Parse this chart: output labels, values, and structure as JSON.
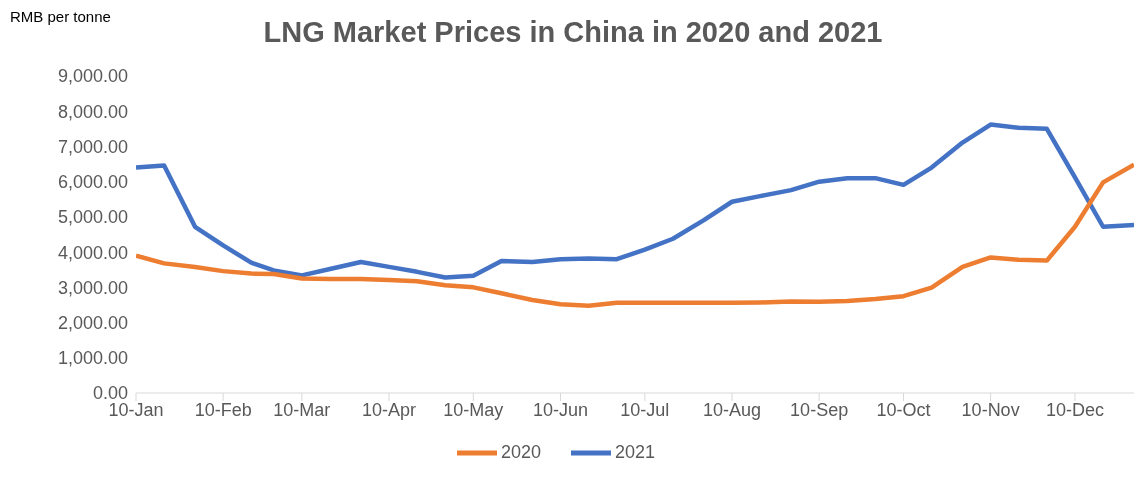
{
  "chart_data": {
    "type": "line",
    "title": "LNG Market Prices in China in 2020 and 2021",
    "ylabel": "RMB per tonne",
    "x": [
      "--01-10",
      "--01-20",
      "--01-31",
      "--02-10",
      "--02-20",
      "--02-28",
      "--03-10",
      "--03-20",
      "--03-31",
      "--04-10",
      "--04-20",
      "--04-30",
      "--05-10",
      "--05-20",
      "--05-31",
      "--06-10",
      "--06-20",
      "--06-30",
      "--07-10",
      "--07-20",
      "--07-31",
      "--08-10",
      "--08-20",
      "--08-31",
      "--09-10",
      "--09-20",
      "--09-30",
      "--10-10",
      "--10-20",
      "--10-31",
      "--11-10",
      "--11-20",
      "--11-30",
      "--12-10",
      "--12-20",
      "--12-31"
    ],
    "series": [
      {
        "name": "2021",
        "color": "#4472c4",
        "values": [
          6400,
          6460,
          4720,
          4190,
          3700,
          3480,
          3340,
          3520,
          3720,
          3580,
          3440,
          3280,
          3330,
          3750,
          3720,
          3800,
          3820,
          3800,
          4070,
          4380,
          4910,
          5430,
          5590,
          5760,
          6000,
          6100,
          6100,
          5910,
          6400,
          7110,
          7620,
          7530,
          7500,
          6120,
          4720,
          4770
        ]
      },
      {
        "name": "2020",
        "color": "#ed7d31",
        "values": [
          3900,
          3680,
          3580,
          3460,
          3390,
          3380,
          3250,
          3240,
          3240,
          3210,
          3170,
          3060,
          3000,
          2830,
          2640,
          2520,
          2480,
          2560,
          2560,
          2560,
          2560,
          2560,
          2570,
          2600,
          2590,
          2610,
          2670,
          2750,
          2990,
          3580,
          3850,
          3780,
          3760,
          4720,
          5980,
          6480
        ]
      }
    ],
    "xlim": [
      "--01-10",
      "--12-31"
    ],
    "xticks": [
      {
        "value": "--01-10",
        "label": "10-Jan"
      },
      {
        "value": "--02-10",
        "label": "10-Feb"
      },
      {
        "value": "--03-10",
        "label": "10-Mar"
      },
      {
        "value": "--04-10",
        "label": "10-Apr"
      },
      {
        "value": "--05-10",
        "label": "10-May"
      },
      {
        "value": "--06-10",
        "label": "10-Jun"
      },
      {
        "value": "--07-10",
        "label": "10-Jul"
      },
      {
        "value": "--08-10",
        "label": "10-Aug"
      },
      {
        "value": "--09-10",
        "label": "10-Sep"
      },
      {
        "value": "--10-10",
        "label": "10-Oct"
      },
      {
        "value": "--11-10",
        "label": "10-Nov"
      },
      {
        "value": "--12-10",
        "label": "10-Dec"
      }
    ],
    "ylim": [
      0,
      9000
    ],
    "yticks": [
      {
        "value": 0,
        "label": "0.00"
      },
      {
        "value": 1000,
        "label": "1,000.00"
      },
      {
        "value": 2000,
        "label": "2,000.00"
      },
      {
        "value": 3000,
        "label": "3,000.00"
      },
      {
        "value": 4000,
        "label": "4,000.00"
      },
      {
        "value": 5000,
        "label": "5,000.00"
      },
      {
        "value": 6000,
        "label": "6,000.00"
      },
      {
        "value": 7000,
        "label": "7,000.00"
      },
      {
        "value": 8000,
        "label": "8,000.00"
      },
      {
        "value": 9000,
        "label": "9,000.00"
      }
    ],
    "legend": "bottom"
  }
}
